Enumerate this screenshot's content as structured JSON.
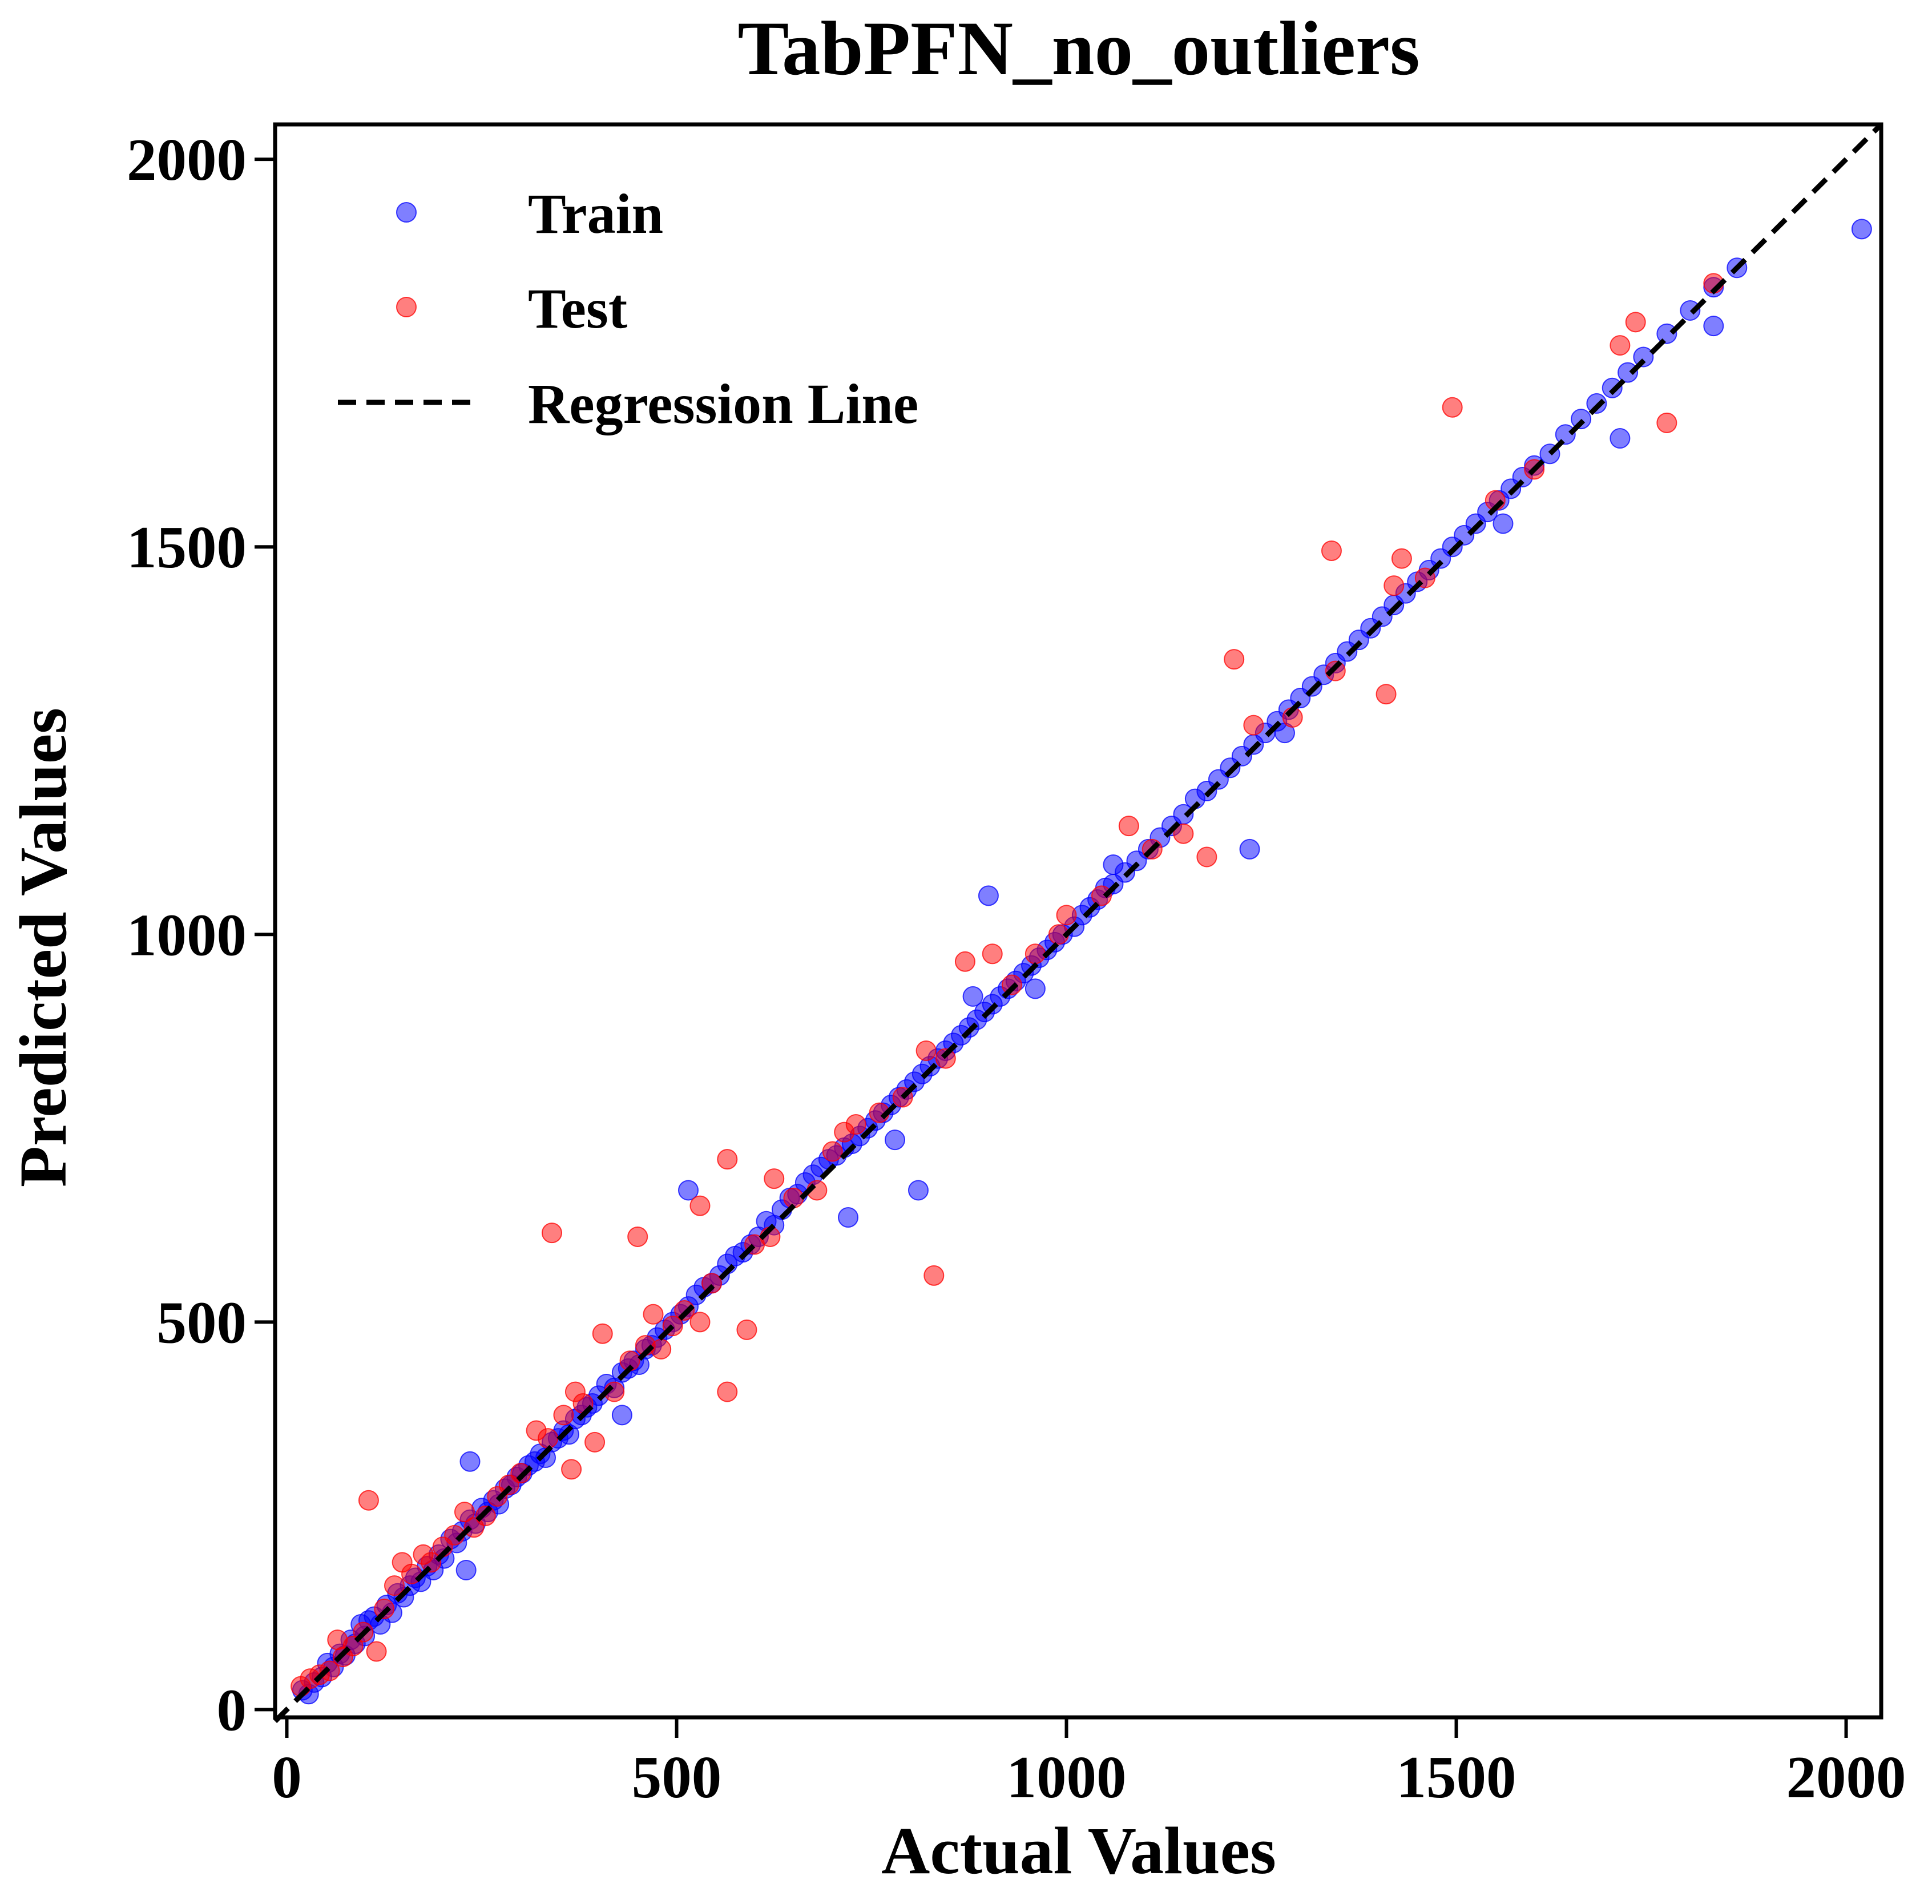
{
  "chart_data": {
    "type": "scatter",
    "title": "TabPFN_no_outliers",
    "xlabel": "Actual Values",
    "ylabel": "Predicted Values",
    "xlim": [
      -15,
      2045
    ],
    "ylim": [
      -10,
      2045
    ],
    "xticks": [
      0,
      500,
      1000,
      1500,
      2000
    ],
    "yticks": [
      0,
      500,
      1000,
      1500,
      2000
    ],
    "grid": false,
    "legend_position": "top-left",
    "legend": [
      {
        "label": "Train",
        "kind": "marker",
        "color": "#0000ff"
      },
      {
        "label": "Test",
        "kind": "marker",
        "color": "#ff0000"
      },
      {
        "label": "Regression Line",
        "kind": "dashed-line",
        "color": "#000000"
      }
    ],
    "regression_line": {
      "x": [
        -15,
        2045
      ],
      "y": [
        -15,
        2045
      ],
      "style": "dashed",
      "color": "#000000"
    },
    "series": [
      {
        "name": "Train",
        "color": "#0000ff",
        "opacity": 0.5,
        "points": [
          [
            20,
            25
          ],
          [
            28,
            20
          ],
          [
            35,
            35
          ],
          [
            45,
            42
          ],
          [
            52,
            60
          ],
          [
            60,
            55
          ],
          [
            68,
            72
          ],
          [
            75,
            70
          ],
          [
            82,
            90
          ],
          [
            88,
            85
          ],
          [
            95,
            110
          ],
          [
            100,
            95
          ],
          [
            105,
            115
          ],
          [
            112,
            120
          ],
          [
            120,
            110
          ],
          [
            128,
            135
          ],
          [
            135,
            125
          ],
          [
            142,
            150
          ],
          [
            150,
            145
          ],
          [
            158,
            160
          ],
          [
            165,
            170
          ],
          [
            172,
            165
          ],
          [
            180,
            185
          ],
          [
            188,
            180
          ],
          [
            195,
            200
          ],
          [
            202,
            195
          ],
          [
            210,
            220
          ],
          [
            218,
            215
          ],
          [
            225,
            230
          ],
          [
            230,
            180
          ],
          [
            235,
            245
          ],
          [
            242,
            240
          ],
          [
            250,
            260
          ],
          [
            258,
            255
          ],
          [
            265,
            270
          ],
          [
            272,
            265
          ],
          [
            280,
            285
          ],
          [
            288,
            290
          ],
          [
            295,
            300
          ],
          [
            302,
            305
          ],
          [
            310,
            315
          ],
          [
            318,
            320
          ],
          [
            325,
            330
          ],
          [
            332,
            325
          ],
          [
            340,
            345
          ],
          [
            348,
            350
          ],
          [
            355,
            360
          ],
          [
            362,
            355
          ],
          [
            370,
            375
          ],
          [
            378,
            380
          ],
          [
            385,
            390
          ],
          [
            392,
            395
          ],
          [
            400,
            405
          ],
          [
            410,
            420
          ],
          [
            420,
            415
          ],
          [
            430,
            435
          ],
          [
            438,
            440
          ],
          [
            445,
            450
          ],
          [
            452,
            445
          ],
          [
            460,
            465
          ],
          [
            468,
            470
          ],
          [
            475,
            480
          ],
          [
            485,
            490
          ],
          [
            495,
            500
          ],
          [
            505,
            510
          ],
          [
            515,
            520
          ],
          [
            525,
            535
          ],
          [
            535,
            545
          ],
          [
            545,
            550
          ],
          [
            555,
            560
          ],
          [
            565,
            575
          ],
          [
            575,
            585
          ],
          [
            585,
            590
          ],
          [
            595,
            600
          ],
          [
            605,
            610
          ],
          [
            615,
            630
          ],
          [
            625,
            625
          ],
          [
            635,
            645
          ],
          [
            645,
            660
          ],
          [
            655,
            665
          ],
          [
            665,
            680
          ],
          [
            675,
            690
          ],
          [
            685,
            700
          ],
          [
            695,
            710
          ],
          [
            705,
            715
          ],
          [
            715,
            725
          ],
          [
            725,
            730
          ],
          [
            735,
            740
          ],
          [
            745,
            750
          ],
          [
            755,
            760
          ],
          [
            765,
            770
          ],
          [
            775,
            780
          ],
          [
            785,
            790
          ],
          [
            795,
            800
          ],
          [
            805,
            810
          ],
          [
            815,
            820
          ],
          [
            825,
            830
          ],
          [
            835,
            840
          ],
          [
            845,
            850
          ],
          [
            855,
            860
          ],
          [
            865,
            870
          ],
          [
            875,
            880
          ],
          [
            885,
            890
          ],
          [
            895,
            900
          ],
          [
            905,
            910
          ],
          [
            915,
            920
          ],
          [
            925,
            930
          ],
          [
            935,
            940
          ],
          [
            945,
            950
          ],
          [
            955,
            960
          ],
          [
            965,
            970
          ],
          [
            975,
            980
          ],
          [
            985,
            990
          ],
          [
            995,
            1000
          ],
          [
            1010,
            1010
          ],
          [
            1020,
            1025
          ],
          [
            1030,
            1035
          ],
          [
            1040,
            1045
          ],
          [
            1050,
            1060
          ],
          [
            1060,
            1065
          ],
          [
            1075,
            1080
          ],
          [
            1090,
            1095
          ],
          [
            1105,
            1110
          ],
          [
            1120,
            1125
          ],
          [
            1135,
            1140
          ],
          [
            1150,
            1155
          ],
          [
            1165,
            1175
          ],
          [
            1180,
            1185
          ],
          [
            1195,
            1200
          ],
          [
            1210,
            1215
          ],
          [
            1225,
            1230
          ],
          [
            1240,
            1245
          ],
          [
            1255,
            1260
          ],
          [
            1270,
            1275
          ],
          [
            1285,
            1290
          ],
          [
            1300,
            1305
          ],
          [
            1315,
            1320
          ],
          [
            1330,
            1335
          ],
          [
            1345,
            1350
          ],
          [
            1360,
            1365
          ],
          [
            1375,
            1380
          ],
          [
            1390,
            1395
          ],
          [
            1405,
            1410
          ],
          [
            1420,
            1425
          ],
          [
            1435,
            1440
          ],
          [
            1450,
            1455
          ],
          [
            1465,
            1470
          ],
          [
            1480,
            1485
          ],
          [
            1495,
            1500
          ],
          [
            1510,
            1515
          ],
          [
            1525,
            1530
          ],
          [
            1540,
            1545
          ],
          [
            1555,
            1560
          ],
          [
            1570,
            1575
          ],
          [
            1585,
            1590
          ],
          [
            1600,
            1605
          ],
          [
            1620,
            1620
          ],
          [
            1640,
            1645
          ],
          [
            1660,
            1665
          ],
          [
            1680,
            1685
          ],
          [
            1700,
            1705
          ],
          [
            1720,
            1725
          ],
          [
            1740,
            1745
          ],
          [
            1770,
            1775
          ],
          [
            1800,
            1805
          ],
          [
            1830,
            1835
          ],
          [
            1860,
            1860
          ],
          [
            2020,
            1910
          ],
          [
            235,
            320
          ],
          [
            515,
            670
          ],
          [
            430,
            380
          ],
          [
            720,
            635
          ],
          [
            810,
            670
          ],
          [
            900,
            1050
          ],
          [
            1235,
            1110
          ],
          [
            1710,
            1640
          ],
          [
            1830,
            1785
          ],
          [
            780,
            735
          ],
          [
            880,
            920
          ],
          [
            960,
            930
          ],
          [
            1060,
            1090
          ],
          [
            1280,
            1260
          ],
          [
            1560,
            1530
          ]
        ]
      },
      {
        "name": "Test",
        "color": "#ff0000",
        "opacity": 0.5,
        "points": [
          [
            18,
            30
          ],
          [
            30,
            40
          ],
          [
            42,
            45
          ],
          [
            55,
            50
          ],
          [
            65,
            90
          ],
          [
            72,
            68
          ],
          [
            85,
            82
          ],
          [
            98,
            100
          ],
          [
            105,
            270
          ],
          [
            115,
            75
          ],
          [
            125,
            130
          ],
          [
            138,
            160
          ],
          [
            148,
            190
          ],
          [
            160,
            175
          ],
          [
            175,
            200
          ],
          [
            185,
            190
          ],
          [
            200,
            210
          ],
          [
            215,
            225
          ],
          [
            228,
            255
          ],
          [
            240,
            235
          ],
          [
            255,
            250
          ],
          [
            270,
            275
          ],
          [
            285,
            290
          ],
          [
            300,
            305
          ],
          [
            320,
            360
          ],
          [
            335,
            350
          ],
          [
            340,
            615
          ],
          [
            355,
            380
          ],
          [
            365,
            310
          ],
          [
            370,
            410
          ],
          [
            380,
            395
          ],
          [
            395,
            345
          ],
          [
            405,
            485
          ],
          [
            420,
            410
          ],
          [
            440,
            450
          ],
          [
            450,
            610
          ],
          [
            460,
            470
          ],
          [
            470,
            510
          ],
          [
            480,
            465
          ],
          [
            495,
            495
          ],
          [
            510,
            515
          ],
          [
            530,
            500
          ],
          [
            530,
            650
          ],
          [
            545,
            550
          ],
          [
            565,
            410
          ],
          [
            565,
            710
          ],
          [
            590,
            490
          ],
          [
            600,
            600
          ],
          [
            620,
            610
          ],
          [
            625,
            685
          ],
          [
            650,
            660
          ],
          [
            680,
            670
          ],
          [
            700,
            720
          ],
          [
            715,
            745
          ],
          [
            730,
            755
          ],
          [
            760,
            770
          ],
          [
            790,
            790
          ],
          [
            820,
            850
          ],
          [
            830,
            560
          ],
          [
            845,
            840
          ],
          [
            870,
            965
          ],
          [
            905,
            975
          ],
          [
            930,
            935
          ],
          [
            960,
            975
          ],
          [
            990,
            1000
          ],
          [
            1000,
            1025
          ],
          [
            1045,
            1050
          ],
          [
            1080,
            1140
          ],
          [
            1110,
            1110
          ],
          [
            1150,
            1130
          ],
          [
            1180,
            1100
          ],
          [
            1215,
            1355
          ],
          [
            1240,
            1270
          ],
          [
            1290,
            1280
          ],
          [
            1340,
            1495
          ],
          [
            1345,
            1340
          ],
          [
            1410,
            1310
          ],
          [
            1420,
            1450
          ],
          [
            1430,
            1485
          ],
          [
            1460,
            1460
          ],
          [
            1495,
            1680
          ],
          [
            1550,
            1560
          ],
          [
            1600,
            1600
          ],
          [
            1710,
            1760
          ],
          [
            1730,
            1790
          ],
          [
            1770,
            1660
          ],
          [
            1830,
            1840
          ]
        ]
      }
    ]
  }
}
